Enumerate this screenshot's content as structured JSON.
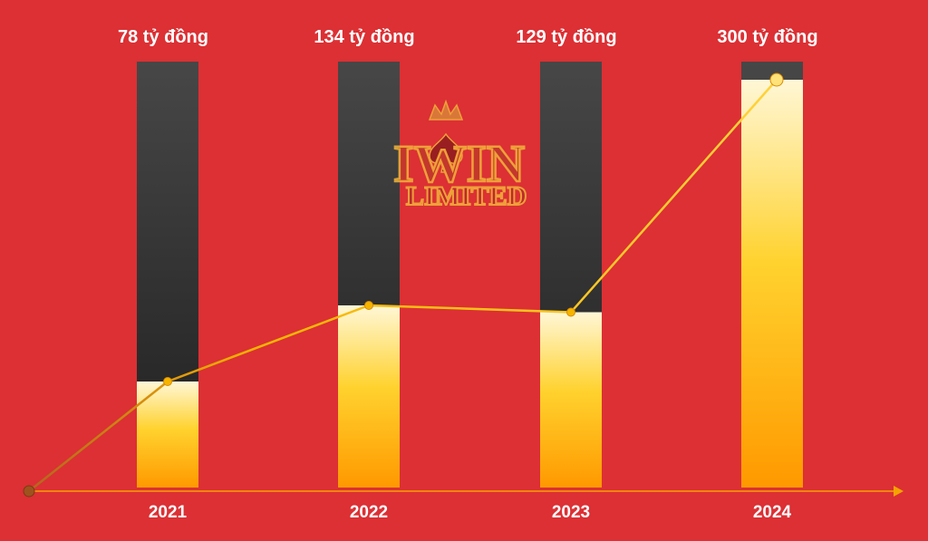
{
  "chart_data": {
    "type": "bar",
    "categories": [
      "2021",
      "2022",
      "2023",
      "2024"
    ],
    "values": [
      78,
      134,
      129,
      300
    ],
    "value_labels": [
      "78 tỷ đồng",
      "134 tỷ đồng",
      "129 tỷ đồng",
      "300 tỷ đồng"
    ],
    "line_overlay": true,
    "line_start_value": 0,
    "ylim": [
      0,
      300
    ],
    "grid": false,
    "legend": "none",
    "title": "",
    "xlabel": "",
    "ylabel": ""
  },
  "colors": {
    "background": "#DC3034",
    "bar_track": "#2B2B2B",
    "fill_top": "#FFF7D6",
    "fill_mid": "#FFD22E",
    "fill_bottom": "#FF9900",
    "line": "#F5B400",
    "axis": "#F5A300"
  },
  "watermark": {
    "icon": "crown-spade-icon",
    "line1": "IWIN",
    "line2": "LIMITED"
  }
}
